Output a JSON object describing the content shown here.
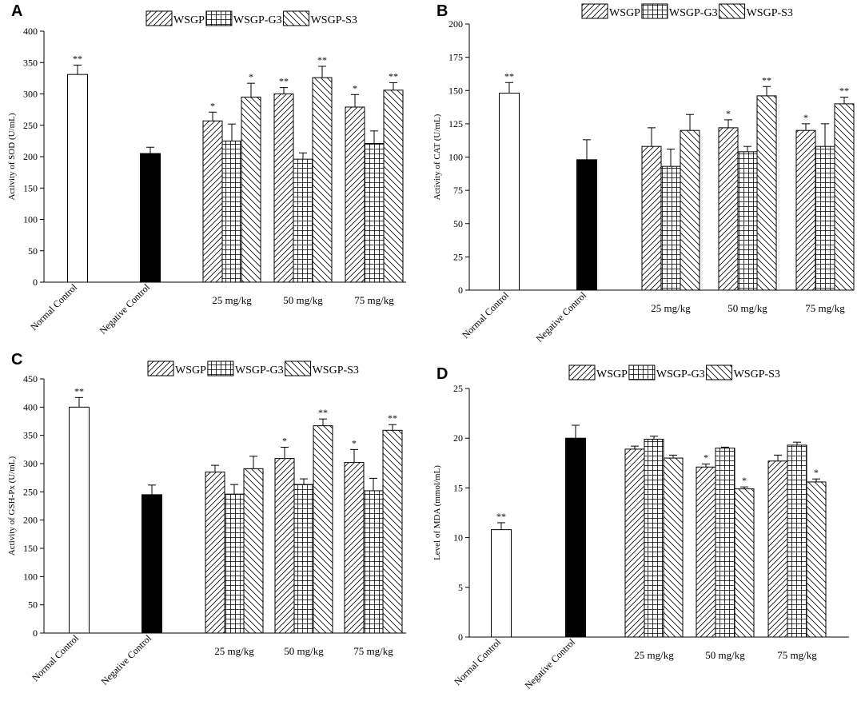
{
  "legend": [
    "WSGP",
    "WSGP-G3",
    "WSGP-S3"
  ],
  "chart_data": [
    {
      "type": "bar",
      "panel": "A",
      "ylabel": "Activity of SOD (U/mL)",
      "ylim": [
        0,
        400
      ],
      "yticks": [
        0,
        50,
        100,
        150,
        200,
        250,
        300,
        350,
        400
      ],
      "controls": [
        {
          "label": "Normal Control",
          "value": 331,
          "err": 15,
          "sig": "**"
        },
        {
          "label": "Negative Control",
          "value": 205,
          "err": 10,
          "sig": ""
        }
      ],
      "groups": [
        "25 mg/kg",
        "50 mg/kg",
        "75 mg/kg"
      ],
      "series": [
        {
          "name": "WSGP",
          "values": [
            257,
            300,
            279
          ],
          "err": [
            14,
            10,
            20
          ],
          "sig": [
            "*",
            "**",
            "*"
          ]
        },
        {
          "name": "WSGP-G3",
          "values": [
            225,
            196,
            221
          ],
          "err": [
            27,
            10,
            20
          ],
          "sig": [
            "",
            "",
            ""
          ]
        },
        {
          "name": "WSGP-S3",
          "values": [
            295,
            326,
            306
          ],
          "err": [
            22,
            18,
            12
          ],
          "sig": [
            "*",
            "**",
            "**"
          ]
        }
      ]
    },
    {
      "type": "bar",
      "panel": "B",
      "ylabel": "Activity of CAT (U/mL)",
      "ylim": [
        0,
        200
      ],
      "yticks": [
        0,
        25,
        50,
        75,
        100,
        125,
        150,
        175,
        200
      ],
      "controls": [
        {
          "label": "Normal Control",
          "value": 148,
          "err": 8,
          "sig": "**"
        },
        {
          "label": "Negative Control",
          "value": 98,
          "err": 15,
          "sig": ""
        }
      ],
      "groups": [
        "25 mg/kg",
        "50 mg/kg",
        "75 mg/kg"
      ],
      "series": [
        {
          "name": "WSGP",
          "values": [
            108,
            122,
            120
          ],
          "err": [
            14,
            6,
            5
          ],
          "sig": [
            "",
            "*",
            "*"
          ]
        },
        {
          "name": "WSGP-G3",
          "values": [
            93,
            104,
            108
          ],
          "err": [
            13,
            4,
            17
          ],
          "sig": [
            "",
            "",
            ""
          ]
        },
        {
          "name": "WSGP-S3",
          "values": [
            120,
            146,
            140
          ],
          "err": [
            12,
            7,
            5
          ],
          "sig": [
            "",
            "**",
            "**"
          ]
        }
      ]
    },
    {
      "type": "bar",
      "panel": "C",
      "ylabel": "Activity of GSH-Px (U/mL)",
      "ylim": [
        0,
        450
      ],
      "yticks": [
        0,
        50,
        100,
        150,
        200,
        250,
        300,
        350,
        400,
        450
      ],
      "controls": [
        {
          "label": "Normal Control",
          "value": 400,
          "err": 17,
          "sig": "**"
        },
        {
          "label": "Negative Control",
          "value": 245,
          "err": 17,
          "sig": ""
        }
      ],
      "groups": [
        "25 mg/kg",
        "50 mg/kg",
        "75 mg/kg"
      ],
      "series": [
        {
          "name": "WSGP",
          "values": [
            285,
            309,
            302
          ],
          "err": [
            12,
            20,
            23
          ],
          "sig": [
            "",
            "*",
            "*"
          ]
        },
        {
          "name": "WSGP-G3",
          "values": [
            246,
            263,
            252
          ],
          "err": [
            17,
            10,
            22
          ],
          "sig": [
            "",
            "",
            ""
          ]
        },
        {
          "name": "WSGP-S3",
          "values": [
            291,
            367,
            359
          ],
          "err": [
            22,
            12,
            10
          ],
          "sig": [
            "",
            "**",
            "**"
          ]
        }
      ]
    },
    {
      "type": "bar",
      "panel": "D",
      "ylabel": "Level of MDA (mmol/mL)",
      "ylim": [
        0,
        25
      ],
      "yticks": [
        0,
        5,
        10,
        15,
        20,
        25
      ],
      "controls": [
        {
          "label": "Normal Control",
          "value": 10.8,
          "err": 0.7,
          "sig": "**"
        },
        {
          "label": "Negative Control",
          "value": 20.0,
          "err": 1.3,
          "sig": ""
        }
      ],
      "groups": [
        "25 mg/kg",
        "50 mg/kg",
        "75 mg/kg"
      ],
      "series": [
        {
          "name": "WSGP",
          "values": [
            18.9,
            17.1,
            17.7
          ],
          "err": [
            0.3,
            0.3,
            0.6
          ],
          "sig": [
            "",
            "*",
            ""
          ]
        },
        {
          "name": "WSGP-G3",
          "values": [
            19.9,
            19.0,
            19.3
          ],
          "err": [
            0.3,
            0.1,
            0.3
          ],
          "sig": [
            "",
            "",
            ""
          ]
        },
        {
          "name": "WSGP-S3",
          "values": [
            18.0,
            14.9,
            15.6
          ],
          "err": [
            0.3,
            0.2,
            0.3
          ],
          "sig": [
            "",
            "*",
            "*"
          ]
        }
      ]
    }
  ]
}
